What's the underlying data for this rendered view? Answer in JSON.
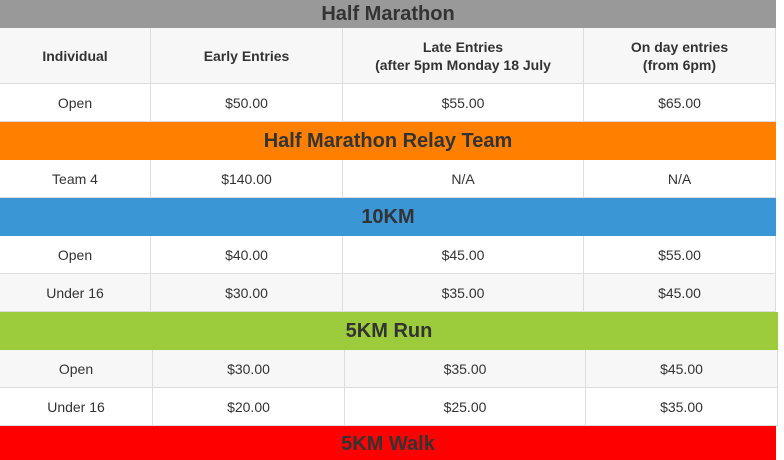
{
  "colors": {
    "half_marathon": "#999999",
    "relay": "#ff8000",
    "tenk": "#3b96d6",
    "fivek_run": "#9ccc3c",
    "fivek_walk": "#ff0000"
  },
  "half_marathon": {
    "title": "Half Marathon",
    "headers": [
      "Individual",
      "Early Entries",
      "Late Entries\n(after 5pm Monday 18 July",
      "On day entries\n(from 6pm)"
    ],
    "rows": [
      [
        "Open",
        "$50.00",
        "$55.00",
        "$65.00"
      ]
    ]
  },
  "relay": {
    "title": "Half Marathon Relay Team",
    "rows": [
      [
        "Team 4",
        "$140.00",
        "N/A",
        "N/A"
      ]
    ]
  },
  "tenk": {
    "title": "10KM",
    "rows": [
      [
        "Open",
        "$40.00",
        "$45.00",
        "$55.00"
      ],
      [
        "Under 16",
        "$30.00",
        "$35.00",
        "$45.00"
      ]
    ]
  },
  "fivek_run": {
    "title": "5KM Run",
    "rows": [
      [
        "Open",
        "$30.00",
        "$35.00",
        "$45.00"
      ],
      [
        "Under 16",
        "$20.00",
        "$25.00",
        "$35.00"
      ]
    ]
  },
  "fivek_walk": {
    "title": "5KM Walk"
  }
}
